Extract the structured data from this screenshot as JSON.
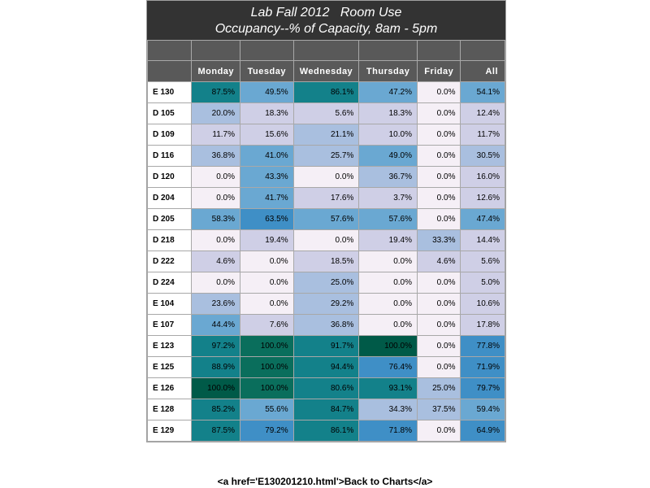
{
  "title_line1": "Lab Fall 2012   Room Use",
  "title_line2": "Occupancy--% of Capacity, 8am - 5pm",
  "columns": [
    "Monday",
    "Tuesday",
    "Wednesday",
    "Thursday",
    "Friday",
    "All"
  ],
  "rows": [
    {
      "room": "E 130",
      "values": [
        "87.5%",
        "49.5%",
        "86.1%",
        "47.2%",
        "0.0%",
        "54.1%"
      ],
      "colors": [
        "#13818a",
        "#6aa8d2",
        "#13818a",
        "#6aa8d2",
        "#f5eff6",
        "#6aa8d2"
      ]
    },
    {
      "room": "D 105",
      "values": [
        "20.0%",
        "18.3%",
        "5.6%",
        "18.3%",
        "0.0%",
        "12.4%"
      ],
      "colors": [
        "#a9bfdf",
        "#cfcfe6",
        "#cfcfe6",
        "#cfcfe6",
        "#f5eff6",
        "#cfcfe6"
      ]
    },
    {
      "room": "D 109",
      "values": [
        "11.7%",
        "15.6%",
        "21.1%",
        "10.0%",
        "0.0%",
        "11.7%"
      ],
      "colors": [
        "#cfcfe6",
        "#cfcfe6",
        "#a9bfdf",
        "#cfcfe6",
        "#f5eff6",
        "#cfcfe6"
      ]
    },
    {
      "room": "D 116",
      "values": [
        "36.8%",
        "41.0%",
        "25.7%",
        "49.0%",
        "0.0%",
        "30.5%"
      ],
      "colors": [
        "#a9bfdf",
        "#6aa8d2",
        "#a9bfdf",
        "#6aa8d2",
        "#f5eff6",
        "#a9bfdf"
      ]
    },
    {
      "room": "D 120",
      "values": [
        "0.0%",
        "43.3%",
        "0.0%",
        "36.7%",
        "0.0%",
        "16.0%"
      ],
      "colors": [
        "#f5eff6",
        "#6aa8d2",
        "#f5eff6",
        "#a9bfdf",
        "#f5eff6",
        "#cfcfe6"
      ]
    },
    {
      "room": "D 204",
      "values": [
        "0.0%",
        "41.7%",
        "17.6%",
        "3.7%",
        "0.0%",
        "12.6%"
      ],
      "colors": [
        "#f5eff6",
        "#6aa8d2",
        "#cfcfe6",
        "#cfcfe6",
        "#f5eff6",
        "#cfcfe6"
      ]
    },
    {
      "room": "D 205",
      "values": [
        "58.3%",
        "63.5%",
        "57.6%",
        "57.6%",
        "0.0%",
        "47.4%"
      ],
      "colors": [
        "#6aa8d2",
        "#3f8fc6",
        "#6aa8d2",
        "#6aa8d2",
        "#f5eff6",
        "#6aa8d2"
      ]
    },
    {
      "room": "D 218",
      "values": [
        "0.0%",
        "19.4%",
        "0.0%",
        "19.4%",
        "33.3%",
        "14.4%"
      ],
      "colors": [
        "#f5eff6",
        "#cfcfe6",
        "#f5eff6",
        "#cfcfe6",
        "#a9bfdf",
        "#cfcfe6"
      ]
    },
    {
      "room": "D 222",
      "values": [
        "4.6%",
        "0.0%",
        "18.5%",
        "0.0%",
        "4.6%",
        "5.6%"
      ],
      "colors": [
        "#cfcfe6",
        "#f5eff6",
        "#cfcfe6",
        "#f5eff6",
        "#cfcfe6",
        "#cfcfe6"
      ]
    },
    {
      "room": "D 224",
      "values": [
        "0.0%",
        "0.0%",
        "25.0%",
        "0.0%",
        "0.0%",
        "5.0%"
      ],
      "colors": [
        "#f5eff6",
        "#f5eff6",
        "#a9bfdf",
        "#f5eff6",
        "#f5eff6",
        "#cfcfe6"
      ]
    },
    {
      "room": "E 104",
      "values": [
        "23.6%",
        "0.0%",
        "29.2%",
        "0.0%",
        "0.0%",
        "10.6%"
      ],
      "colors": [
        "#a9bfdf",
        "#f5eff6",
        "#a9bfdf",
        "#f5eff6",
        "#f5eff6",
        "#cfcfe6"
      ]
    },
    {
      "room": "E 107",
      "values": [
        "44.4%",
        "7.6%",
        "36.8%",
        "0.0%",
        "0.0%",
        "17.8%"
      ],
      "colors": [
        "#6aa8d2",
        "#cfcfe6",
        "#a9bfdf",
        "#f5eff6",
        "#f5eff6",
        "#cfcfe6"
      ]
    },
    {
      "room": "E 123",
      "values": [
        "97.2%",
        "100.0%",
        "91.7%",
        "100.0%",
        "0.0%",
        "77.8%"
      ],
      "colors": [
        "#13818a",
        "#0a6e5c",
        "#13818a",
        "#005a48",
        "#f5eff6",
        "#3f8fc6"
      ]
    },
    {
      "room": "E 125",
      "values": [
        "88.9%",
        "100.0%",
        "94.4%",
        "76.4%",
        "0.0%",
        "71.9%"
      ],
      "colors": [
        "#13818a",
        "#0a6e5c",
        "#13818a",
        "#3f8fc6",
        "#f5eff6",
        "#3f8fc6"
      ]
    },
    {
      "room": "E 126",
      "values": [
        "100.0%",
        "100.0%",
        "80.6%",
        "93.1%",
        "25.0%",
        "79.7%"
      ],
      "colors": [
        "#005a48",
        "#0a6e5c",
        "#13818a",
        "#13818a",
        "#a9bfdf",
        "#3f8fc6"
      ]
    },
    {
      "room": "E 128",
      "values": [
        "85.2%",
        "55.6%",
        "84.7%",
        "34.3%",
        "37.5%",
        "59.4%"
      ],
      "colors": [
        "#13818a",
        "#6aa8d2",
        "#13818a",
        "#a9bfdf",
        "#a9bfdf",
        "#6aa8d2"
      ]
    },
    {
      "room": "E 129",
      "values": [
        "87.5%",
        "79.2%",
        "86.1%",
        "71.8%",
        "0.0%",
        "64.9%"
      ],
      "colors": [
        "#13818a",
        "#3f8fc6",
        "#13818a",
        "#3f8fc6",
        "#f5eff6",
        "#3f8fc6"
      ]
    }
  ],
  "footer_link": "<a href='E130201210.html'>Back to Charts</a>"
}
